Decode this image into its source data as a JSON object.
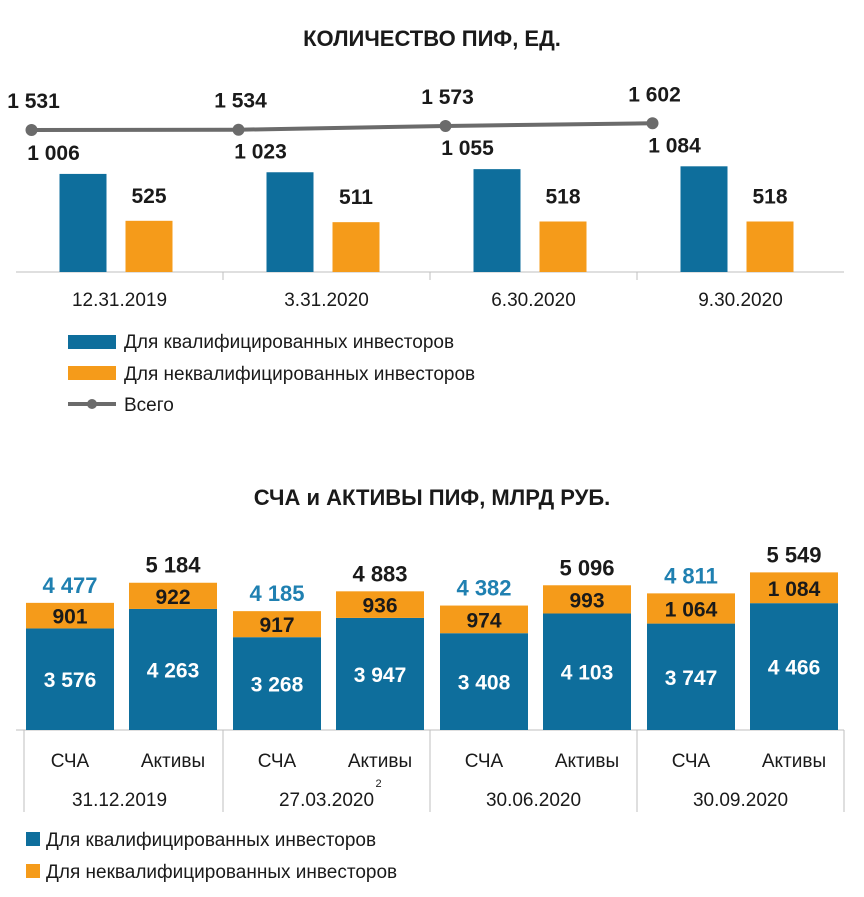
{
  "colors": {
    "blue": "#0e6e9c",
    "orange": "#f59b1a",
    "gray": "#6b6b6b",
    "total_label_blue": "#1f80b1",
    "axis": "#bfbfbf"
  },
  "chart_data": [
    {
      "type": "bar",
      "title": "КОЛИЧЕСТВО ПИФ, ЕД.",
      "categories": [
        "12.31.2019",
        "3.31.2020",
        "6.30.2020",
        "9.30.2020"
      ],
      "series": [
        {
          "name": "Для квалифицированных инвесторов",
          "type": "bar",
          "color": "#0e6e9c",
          "values": [
            1006,
            1023,
            1055,
            1084
          ],
          "labels": [
            "1 006",
            "1 023",
            "1 055",
            "1 084"
          ]
        },
        {
          "name": "Для неквалифицированных инвесторов",
          "type": "bar",
          "color": "#f59b1a",
          "values": [
            525,
            511,
            518,
            518
          ],
          "labels": [
            "525",
            "511",
            "518",
            "518"
          ]
        },
        {
          "name": "Всего",
          "type": "line",
          "color": "#6b6b6b",
          "values": [
            1531,
            1534,
            1573,
            1602
          ],
          "labels": [
            "1 531",
            "1 534",
            "1 573",
            "1 602"
          ]
        }
      ],
      "legend": [
        "Для квалифицированных инвесторов",
        "Для неквалифицированных инвесторов",
        "Всего"
      ],
      "legend_placement": "bottom-left"
    },
    {
      "type": "bar",
      "stacked": true,
      "title": "СЧА и АКТИВЫ ПИФ, МЛРД РУБ.",
      "groups": [
        {
          "date": "31.12.2019",
          "footnote": "",
          "bars": [
            {
              "label": "СЧА",
              "qual": 3576,
              "nonqual": 901,
              "total": 4477,
              "qual_label": "3 576",
              "nonqual_label": "901",
              "total_label": "4 477"
            },
            {
              "label": "Активы",
              "qual": 4263,
              "nonqual": 922,
              "total": 5184,
              "qual_label": "4 263",
              "nonqual_label": "922",
              "total_label": "5 184"
            }
          ]
        },
        {
          "date": "27.03.2020",
          "footnote": "2",
          "bars": [
            {
              "label": "СЧА",
              "qual": 3268,
              "nonqual": 917,
              "total": 4185,
              "qual_label": "3 268",
              "nonqual_label": "917",
              "total_label": "4 185"
            },
            {
              "label": "Активы",
              "qual": 3947,
              "nonqual": 936,
              "total": 4883,
              "qual_label": "3 947",
              "nonqual_label": "936",
              "total_label": "4 883"
            }
          ]
        },
        {
          "date": "30.06.2020",
          "footnote": "",
          "bars": [
            {
              "label": "СЧА",
              "qual": 3408,
              "nonqual": 974,
              "total": 4382,
              "qual_label": "3 408",
              "nonqual_label": "974",
              "total_label": "4 382"
            },
            {
              "label": "Активы",
              "qual": 4103,
              "nonqual": 993,
              "total": 5096,
              "qual_label": "4 103",
              "nonqual_label": "993",
              "total_label": "5 096"
            }
          ]
        },
        {
          "date": "30.09.2020",
          "footnote": "",
          "bars": [
            {
              "label": "СЧА",
              "qual": 3747,
              "nonqual": 1064,
              "total": 4811,
              "qual_label": "3 747",
              "nonqual_label": "1 064",
              "total_label": "4 811"
            },
            {
              "label": "Активы",
              "qual": 4466,
              "nonqual": 1084,
              "total": 5549,
              "qual_label": "4 466",
              "nonqual_label": "1 084",
              "total_label": "5 549"
            }
          ]
        }
      ],
      "series": [
        {
          "name": "Для квалифицированных инвесторов",
          "color": "#0e6e9c"
        },
        {
          "name": "Для неквалифицированных инвесторов",
          "color": "#f59b1a"
        }
      ],
      "legend": [
        "Для квалифицированных инвесторов",
        "Для неквалифицированных инвесторов"
      ],
      "legend_placement": "bottom-left"
    }
  ]
}
